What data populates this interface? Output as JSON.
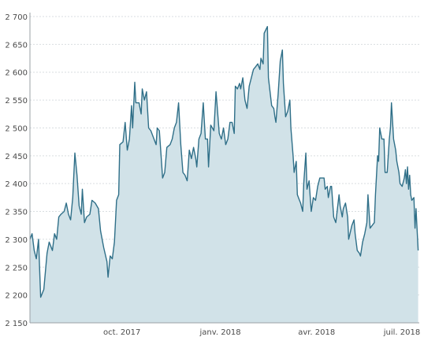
{
  "chart_data": {
    "type": "area",
    "title": "",
    "xlabel": "",
    "ylabel": "",
    "ylim": [
      2150,
      2700
    ],
    "yticks": [
      2150,
      2200,
      2250,
      2300,
      2350,
      2400,
      2450,
      2500,
      2550,
      2600,
      2650,
      2700
    ],
    "ytick_labels": [
      "2 150",
      "2 200",
      "2 250",
      "2 300",
      "2 350",
      "2 400",
      "2 450",
      "2 500",
      "2 550",
      "2 600",
      "2 650",
      "2 700"
    ],
    "xlim": [
      "2017-07-07",
      "2018-07-06"
    ],
    "xticks": [
      {
        "date": "2017-10-01",
        "label": "oct. 2017"
      },
      {
        "date": "2018-01-01",
        "label": "janv. 2018"
      },
      {
        "date": "2018-04-01",
        "label": "avr. 2018"
      },
      {
        "date": "2018-07-01",
        "label": "juil. 2018"
      }
    ],
    "grid": true,
    "colors": {
      "line": "#2f6f88",
      "fill": "#d1e2e8",
      "grid": "#d9dde0"
    },
    "series": [
      {
        "values": [
          [
            "2017-07-07",
            2300
          ],
          [
            "2017-07-09",
            2310
          ],
          [
            "2017-07-11",
            2280
          ],
          [
            "2017-07-13",
            2265
          ],
          [
            "2017-07-15",
            2300
          ],
          [
            "2017-07-17",
            2196
          ],
          [
            "2017-07-20",
            2210
          ],
          [
            "2017-07-23",
            2275
          ],
          [
            "2017-07-25",
            2295
          ],
          [
            "2017-07-28",
            2280
          ],
          [
            "2017-07-30",
            2310
          ],
          [
            "2017-08-01",
            2300
          ],
          [
            "2017-08-03",
            2340
          ],
          [
            "2017-08-05",
            2345
          ],
          [
            "2017-08-08",
            2350
          ],
          [
            "2017-08-10",
            2365
          ],
          [
            "2017-08-12",
            2345
          ],
          [
            "2017-08-14",
            2335
          ],
          [
            "2017-08-16",
            2375
          ],
          [
            "2017-08-18",
            2455
          ],
          [
            "2017-08-20",
            2415
          ],
          [
            "2017-08-22",
            2360
          ],
          [
            "2017-08-24",
            2345
          ],
          [
            "2017-08-25",
            2390
          ],
          [
            "2017-08-27",
            2330
          ],
          [
            "2017-08-29",
            2340
          ],
          [
            "2017-09-01",
            2345
          ],
          [
            "2017-09-03",
            2370
          ],
          [
            "2017-09-06",
            2365
          ],
          [
            "2017-09-09",
            2355
          ],
          [
            "2017-09-11",
            2315
          ],
          [
            "2017-09-14",
            2285
          ],
          [
            "2017-09-17",
            2260
          ],
          [
            "2017-09-18",
            2232
          ],
          [
            "2017-09-20",
            2270
          ],
          [
            "2017-09-22",
            2265
          ],
          [
            "2017-09-24",
            2295
          ],
          [
            "2017-09-26",
            2370
          ],
          [
            "2017-09-28",
            2380
          ],
          [
            "2017-09-29",
            2470
          ],
          [
            "2017-10-02",
            2475
          ],
          [
            "2017-10-04",
            2510
          ],
          [
            "2017-10-06",
            2460
          ],
          [
            "2017-10-08",
            2480
          ],
          [
            "2017-10-10",
            2540
          ],
          [
            "2017-10-11",
            2500
          ],
          [
            "2017-10-13",
            2582
          ],
          [
            "2017-10-14",
            2545
          ],
          [
            "2017-10-17",
            2545
          ],
          [
            "2017-10-19",
            2525
          ],
          [
            "2017-10-20",
            2570
          ],
          [
            "2017-10-22",
            2550
          ],
          [
            "2017-10-24",
            2565
          ],
          [
            "2017-10-26",
            2500
          ],
          [
            "2017-10-28",
            2495
          ],
          [
            "2017-10-31",
            2480
          ],
          [
            "2017-11-02",
            2470
          ],
          [
            "2017-11-03",
            2500
          ],
          [
            "2017-11-05",
            2495
          ],
          [
            "2017-11-07",
            2440
          ],
          [
            "2017-11-08",
            2410
          ],
          [
            "2017-11-10",
            2420
          ],
          [
            "2017-11-12",
            2465
          ],
          [
            "2017-11-15",
            2470
          ],
          [
            "2017-11-17",
            2480
          ],
          [
            "2017-11-19",
            2500
          ],
          [
            "2017-11-21",
            2510
          ],
          [
            "2017-11-23",
            2545
          ],
          [
            "2017-11-25",
            2470
          ],
          [
            "2017-11-27",
            2420
          ],
          [
            "2017-11-29",
            2415
          ],
          [
            "2017-12-01",
            2405
          ],
          [
            "2017-12-03",
            2460
          ],
          [
            "2017-12-05",
            2445
          ],
          [
            "2017-12-07",
            2465
          ],
          [
            "2017-12-09",
            2445
          ],
          [
            "2017-12-10",
            2430
          ],
          [
            "2017-12-12",
            2480
          ],
          [
            "2017-12-14",
            2490
          ],
          [
            "2017-12-16",
            2545
          ],
          [
            "2017-12-18",
            2480
          ],
          [
            "2017-12-20",
            2480
          ],
          [
            "2017-12-21",
            2430
          ],
          [
            "2017-12-23",
            2505
          ],
          [
            "2017-12-26",
            2495
          ],
          [
            "2017-12-28",
            2565
          ],
          [
            "2017-12-29",
            2540
          ],
          [
            "2017-12-31",
            2490
          ],
          [
            "2018-01-02",
            2480
          ],
          [
            "2018-01-04",
            2500
          ],
          [
            "2018-01-06",
            2470
          ],
          [
            "2018-01-08",
            2480
          ],
          [
            "2018-01-10",
            2510
          ],
          [
            "2018-01-12",
            2510
          ],
          [
            "2018-01-14",
            2490
          ],
          [
            "2018-01-15",
            2575
          ],
          [
            "2018-01-17",
            2570
          ],
          [
            "2018-01-19",
            2580
          ],
          [
            "2018-01-20",
            2570
          ],
          [
            "2018-01-22",
            2590
          ],
          [
            "2018-01-24",
            2550
          ],
          [
            "2018-01-26",
            2535
          ],
          [
            "2018-01-28",
            2575
          ],
          [
            "2018-01-30",
            2590
          ],
          [
            "2018-02-01",
            2605
          ],
          [
            "2018-02-03",
            2610
          ],
          [
            "2018-02-05",
            2615
          ],
          [
            "2018-02-07",
            2605
          ],
          [
            "2018-02-08",
            2625
          ],
          [
            "2018-02-10",
            2615
          ],
          [
            "2018-02-11",
            2670
          ],
          [
            "2018-02-14",
            2682
          ],
          [
            "2018-02-15",
            2590
          ],
          [
            "2018-02-18",
            2540
          ],
          [
            "2018-02-20",
            2535
          ],
          [
            "2018-02-21",
            2520
          ],
          [
            "2018-02-22",
            2510
          ],
          [
            "2018-02-24",
            2560
          ],
          [
            "2018-02-26",
            2620
          ],
          [
            "2018-02-28",
            2640
          ],
          [
            "2018-03-01",
            2580
          ],
          [
            "2018-03-03",
            2520
          ],
          [
            "2018-03-05",
            2530
          ],
          [
            "2018-03-07",
            2550
          ],
          [
            "2018-03-08",
            2500
          ],
          [
            "2018-03-10",
            2450
          ],
          [
            "2018-03-11",
            2420
          ],
          [
            "2018-03-13",
            2440
          ],
          [
            "2018-03-14",
            2380
          ],
          [
            "2018-03-16",
            2370
          ],
          [
            "2018-03-17",
            2365
          ],
          [
            "2018-03-19",
            2350
          ],
          [
            "2018-03-20",
            2400
          ],
          [
            "2018-03-22",
            2455
          ],
          [
            "2018-03-23",
            2390
          ],
          [
            "2018-03-25",
            2405
          ],
          [
            "2018-03-27",
            2350
          ],
          [
            "2018-03-29",
            2375
          ],
          [
            "2018-03-31",
            2370
          ],
          [
            "2018-04-02",
            2395
          ],
          [
            "2018-04-04",
            2410
          ],
          [
            "2018-04-06",
            2410
          ],
          [
            "2018-04-08",
            2410
          ],
          [
            "2018-04-09",
            2390
          ],
          [
            "2018-04-11",
            2395
          ],
          [
            "2018-04-12",
            2375
          ],
          [
            "2018-04-14",
            2395
          ],
          [
            "2018-04-15",
            2395
          ],
          [
            "2018-04-17",
            2340
          ],
          [
            "2018-04-19",
            2330
          ],
          [
            "2018-04-22",
            2380
          ],
          [
            "2018-04-23",
            2360
          ],
          [
            "2018-04-25",
            2340
          ],
          [
            "2018-04-26",
            2355
          ],
          [
            "2018-04-28",
            2365
          ],
          [
            "2018-04-30",
            2340
          ],
          [
            "2018-05-01",
            2300
          ],
          [
            "2018-05-04",
            2325
          ],
          [
            "2018-05-06",
            2335
          ],
          [
            "2018-05-07",
            2310
          ],
          [
            "2018-05-09",
            2280
          ],
          [
            "2018-05-11",
            2275
          ],
          [
            "2018-05-12",
            2270
          ],
          [
            "2018-05-14",
            2295
          ],
          [
            "2018-05-16",
            2310
          ],
          [
            "2018-05-18",
            2330
          ],
          [
            "2018-05-19",
            2380
          ],
          [
            "2018-05-21",
            2320
          ],
          [
            "2018-05-23",
            2325
          ],
          [
            "2018-05-25",
            2330
          ],
          [
            "2018-05-26",
            2380
          ],
          [
            "2018-05-28",
            2450
          ],
          [
            "2018-05-29",
            2440
          ],
          [
            "2018-05-30",
            2500
          ],
          [
            "2018-06-01",
            2480
          ],
          [
            "2018-06-03",
            2480
          ],
          [
            "2018-06-04",
            2420
          ],
          [
            "2018-06-06",
            2420
          ],
          [
            "2018-06-08",
            2480
          ],
          [
            "2018-06-09",
            2500
          ],
          [
            "2018-06-10",
            2545
          ],
          [
            "2018-06-12",
            2480
          ],
          [
            "2018-06-14",
            2460
          ],
          [
            "2018-06-15",
            2440
          ],
          [
            "2018-06-17",
            2420
          ],
          [
            "2018-06-18",
            2400
          ],
          [
            "2018-06-20",
            2395
          ],
          [
            "2018-06-22",
            2410
          ],
          [
            "2018-06-23",
            2425
          ],
          [
            "2018-06-24",
            2400
          ],
          [
            "2018-06-25",
            2430
          ],
          [
            "2018-06-26",
            2390
          ],
          [
            "2018-06-27",
            2415
          ],
          [
            "2018-06-28",
            2380
          ],
          [
            "2018-06-29",
            2370
          ],
          [
            "2018-07-01",
            2375
          ],
          [
            "2018-07-02",
            2320
          ],
          [
            "2018-07-03",
            2355
          ],
          [
            "2018-07-05",
            2280
          ]
        ]
      }
    ]
  }
}
